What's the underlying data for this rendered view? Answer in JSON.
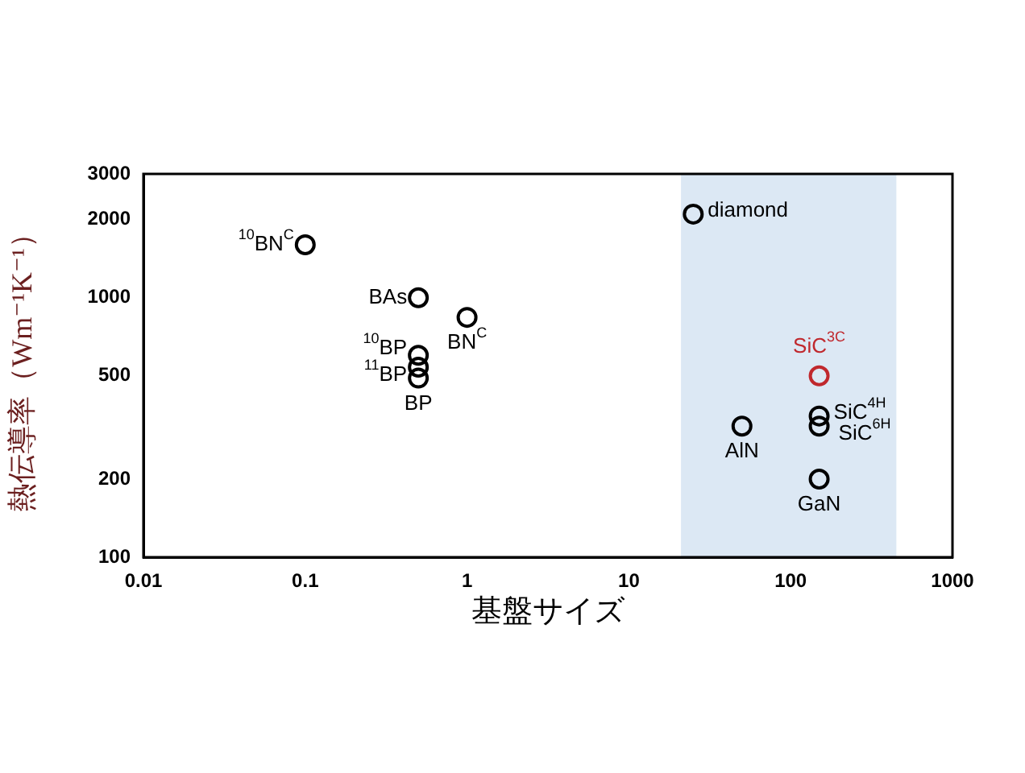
{
  "chart_data": {
    "type": "scatter",
    "xlabel": "基盤サイズ",
    "ylabel": "熱伝導率（Wm⁻¹K⁻¹）",
    "x": [
      0.1,
      0.5,
      1,
      0.5,
      0.5,
      0.5,
      25,
      150,
      150,
      150,
      50,
      150
    ],
    "values": [
      1600,
      1000,
      840,
      600,
      540,
      490,
      2100,
      500,
      350,
      320,
      320,
      200
    ],
    "colors": [
      "#000000",
      "#000000",
      "#000000",
      "#000000",
      "#000000",
      "#000000",
      "#000000",
      "#c0282d",
      "#000000",
      "#000000",
      "#000000",
      "#000000"
    ],
    "marker": "circle",
    "log": "xy",
    "grid": false,
    "legend": false,
    "xlim": [
      0.01,
      1000
    ],
    "xticks": [
      0.01,
      0.1,
      1,
      10,
      100,
      1000
    ],
    "ylim": [
      100,
      3000
    ],
    "yticks": [
      100,
      200,
      500,
      1000,
      2000,
      3000
    ],
    "bands": [
      {
        "axis": "x",
        "from": 21,
        "to": 450,
        "color": "#dce8f4"
      }
    ],
    "annotations": [
      {
        "text": "$^{10}$BN$^{C}$",
        "x": 0.1,
        "y": 1600
      },
      {
        "text": "BAs",
        "x": 0.5,
        "y": 1000
      },
      {
        "text": "BN$^{C}$",
        "x": 1,
        "y": 840
      },
      {
        "text": "$^{10}$BP",
        "x": 0.5,
        "y": 600
      },
      {
        "text": "$^{11}$BP",
        "x": 0.5,
        "y": 540
      },
      {
        "text": "BP",
        "x": 0.5,
        "y": 490
      },
      {
        "text": "diamond",
        "x": 25,
        "y": 2100
      },
      {
        "text": "SiC$^{3C}$",
        "x": 150,
        "y": 500
      },
      {
        "text": "SiC$^{4H}$",
        "x": 150,
        "y": 350
      },
      {
        "text": "SiC$^{6H}$",
        "x": 150,
        "y": 320
      },
      {
        "text": "AlN",
        "x": 50,
        "y": 320
      },
      {
        "text": "GaN",
        "x": 150,
        "y": 200
      }
    ]
  }
}
